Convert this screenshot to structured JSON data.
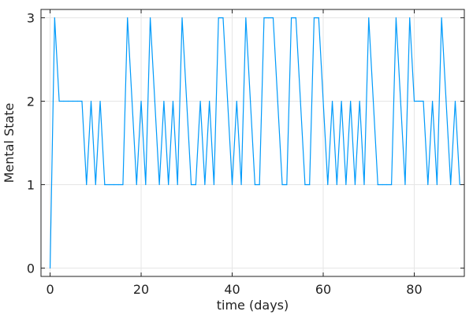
{
  "chart_data": {
    "type": "line",
    "title": "",
    "xlabel": "time (days)",
    "ylabel": "Mental State",
    "xlim": [
      -2,
      91
    ],
    "ylim": [
      -0.1,
      3.1
    ],
    "xticks": [
      0,
      20,
      40,
      60,
      80
    ],
    "yticks": [
      0,
      1,
      2,
      3
    ],
    "xtick_labels": [
      "0",
      "20",
      "40",
      "60",
      "80"
    ],
    "ytick_labels": [
      "0",
      "1",
      "2",
      "3"
    ],
    "grid": true,
    "legend": "none",
    "series": [
      {
        "color": "#009AFA",
        "x": [
          0,
          1,
          2,
          3,
          4,
          5,
          6,
          7,
          8,
          9,
          10,
          11,
          12,
          13,
          14,
          15,
          16,
          17,
          18,
          19,
          20,
          21,
          22,
          23,
          24,
          25,
          26,
          27,
          28,
          29,
          30,
          31,
          32,
          33,
          34,
          35,
          36,
          37,
          38,
          39,
          40,
          41,
          42,
          43,
          44,
          45,
          46,
          47,
          48,
          49,
          50,
          51,
          52,
          53,
          54,
          55,
          56,
          57,
          58,
          59,
          60,
          61,
          62,
          63,
          64,
          65,
          66,
          67,
          68,
          69,
          70,
          71,
          72,
          73,
          74,
          75,
          76,
          77,
          78,
          79,
          80,
          81,
          82,
          83,
          84,
          85,
          86,
          87,
          88,
          89,
          90
        ],
        "values": [
          0,
          3,
          2,
          2,
          2,
          2,
          2,
          2,
          1,
          2,
          1,
          2,
          1,
          1,
          1,
          1,
          1,
          3,
          2,
          1,
          2,
          1,
          3,
          2,
          1,
          2,
          1,
          2,
          1,
          3,
          2,
          1,
          1,
          2,
          1,
          2,
          1,
          3,
          3,
          2,
          1,
          2,
          1,
          3,
          2,
          1,
          1,
          3,
          3,
          3,
          2,
          1,
          1,
          3,
          3,
          2,
          1,
          1,
          3,
          3,
          2,
          1,
          2,
          1,
          2,
          1,
          2,
          1,
          2,
          1,
          3,
          2,
          1,
          1,
          1,
          1,
          3,
          2,
          1,
          3,
          2,
          2,
          2,
          1,
          2,
          1,
          3,
          2,
          1,
          2,
          1
        ]
      }
    ]
  }
}
